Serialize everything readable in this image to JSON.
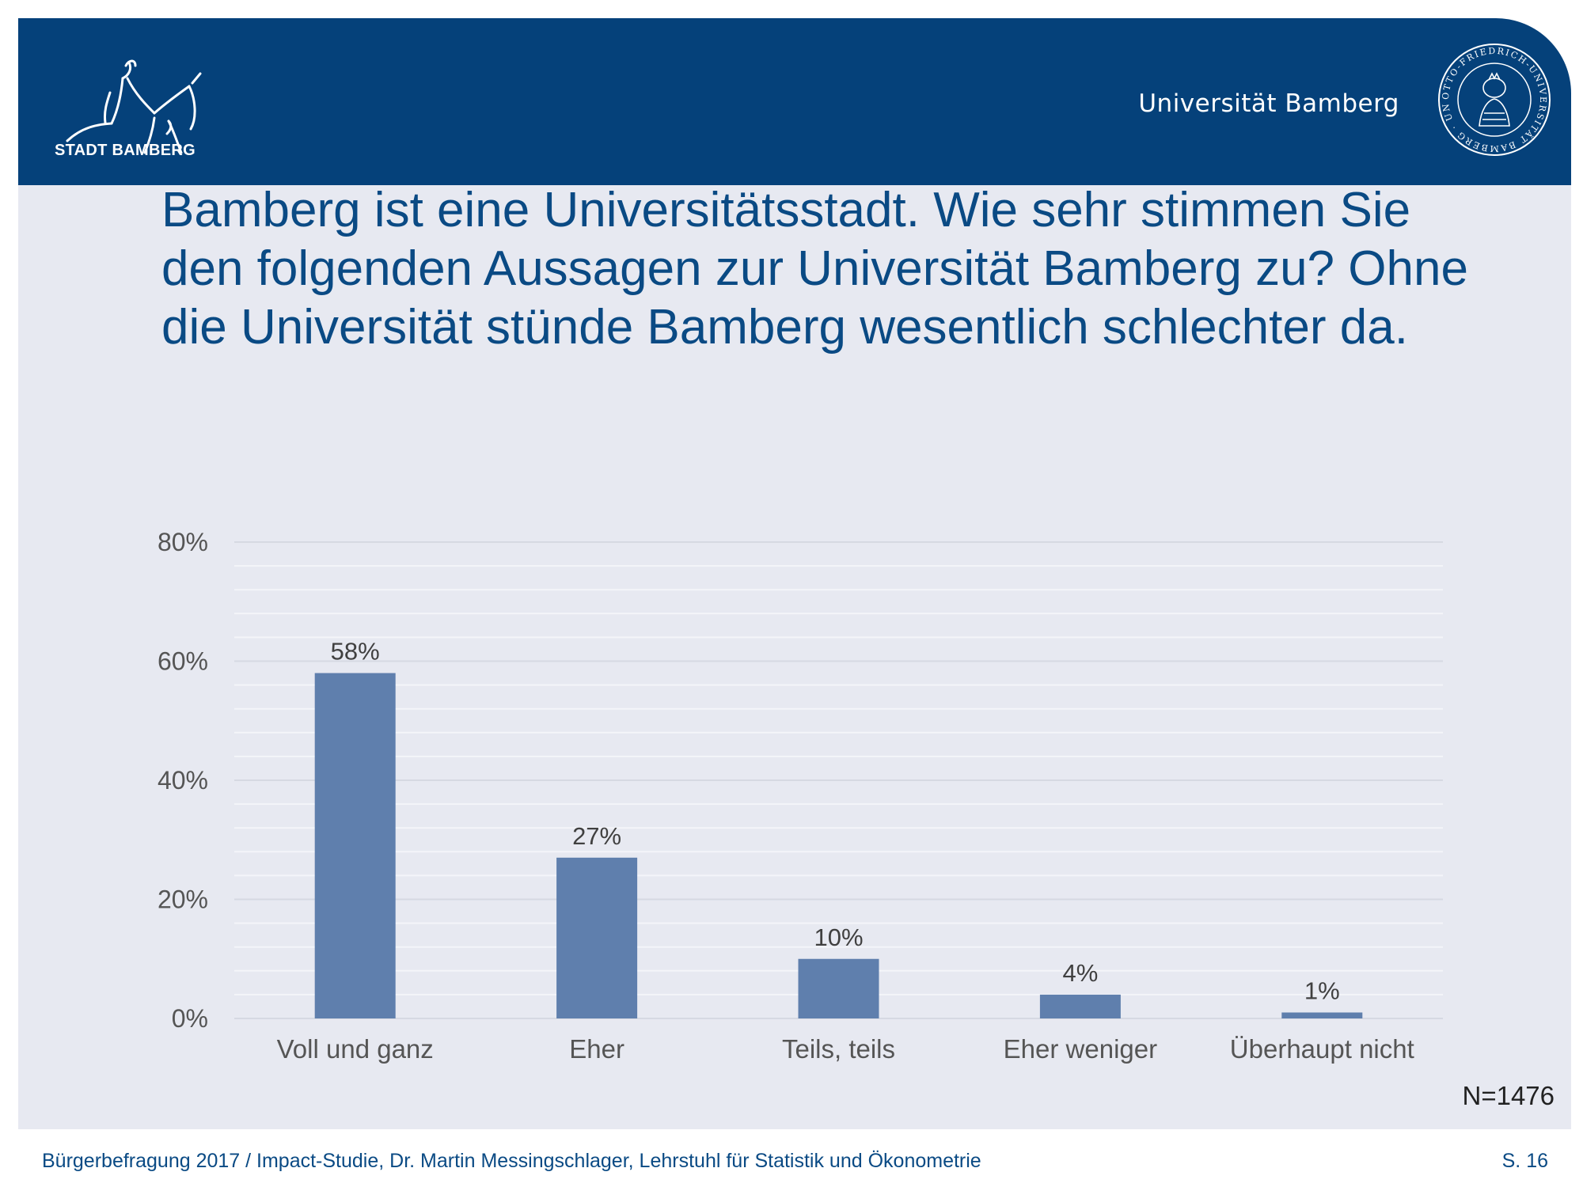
{
  "header": {
    "city_logo_text": "STADT BAMBERG",
    "university_name": "Universität Bamberg",
    "seal_icon": "university-seal-icon",
    "seal_ring_text": "OTTO-FRIEDRICH-UNIVERSITÄT BAMBERG · UNIVERSITY OF BAMBERG",
    "colors": {
      "header_bg": "#05417a",
      "slide_bg": "#e7e9f1"
    }
  },
  "question": "Bamberg ist eine Universitätsstadt. Wie sehr stimmen Sie den folgenden Aussagen zur Universität Bamberg zu? Ohne die Universität stünde Bamberg wesentlich schlechter da.",
  "chart_data": {
    "type": "bar",
    "title": "",
    "xlabel": "",
    "ylabel": "",
    "categories": [
      "Voll und ganz",
      "Eher",
      "Teils, teils",
      "Eher weniger",
      "Überhaupt nicht"
    ],
    "values": [
      58,
      27,
      10,
      4,
      1
    ],
    "data_labels": [
      "58%",
      "27%",
      "10%",
      "4%",
      "1%"
    ],
    "ylim": [
      0,
      80
    ],
    "yticks": [
      0,
      20,
      40,
      60,
      80
    ],
    "ytick_labels": [
      "0%",
      "20%",
      "40%",
      "60%",
      "80%"
    ],
    "minor_gridline_step": 4,
    "grid": true,
    "bar_color": "#5f7fad",
    "legend": "none"
  },
  "sample_size": "N=1476",
  "footer": {
    "source": "Bürgerbefragung 2017 / Impact-Studie, Dr. Martin Messingschlager, Lehrstuhl für Statistik und Ökonometrie",
    "page": "S. 16"
  }
}
